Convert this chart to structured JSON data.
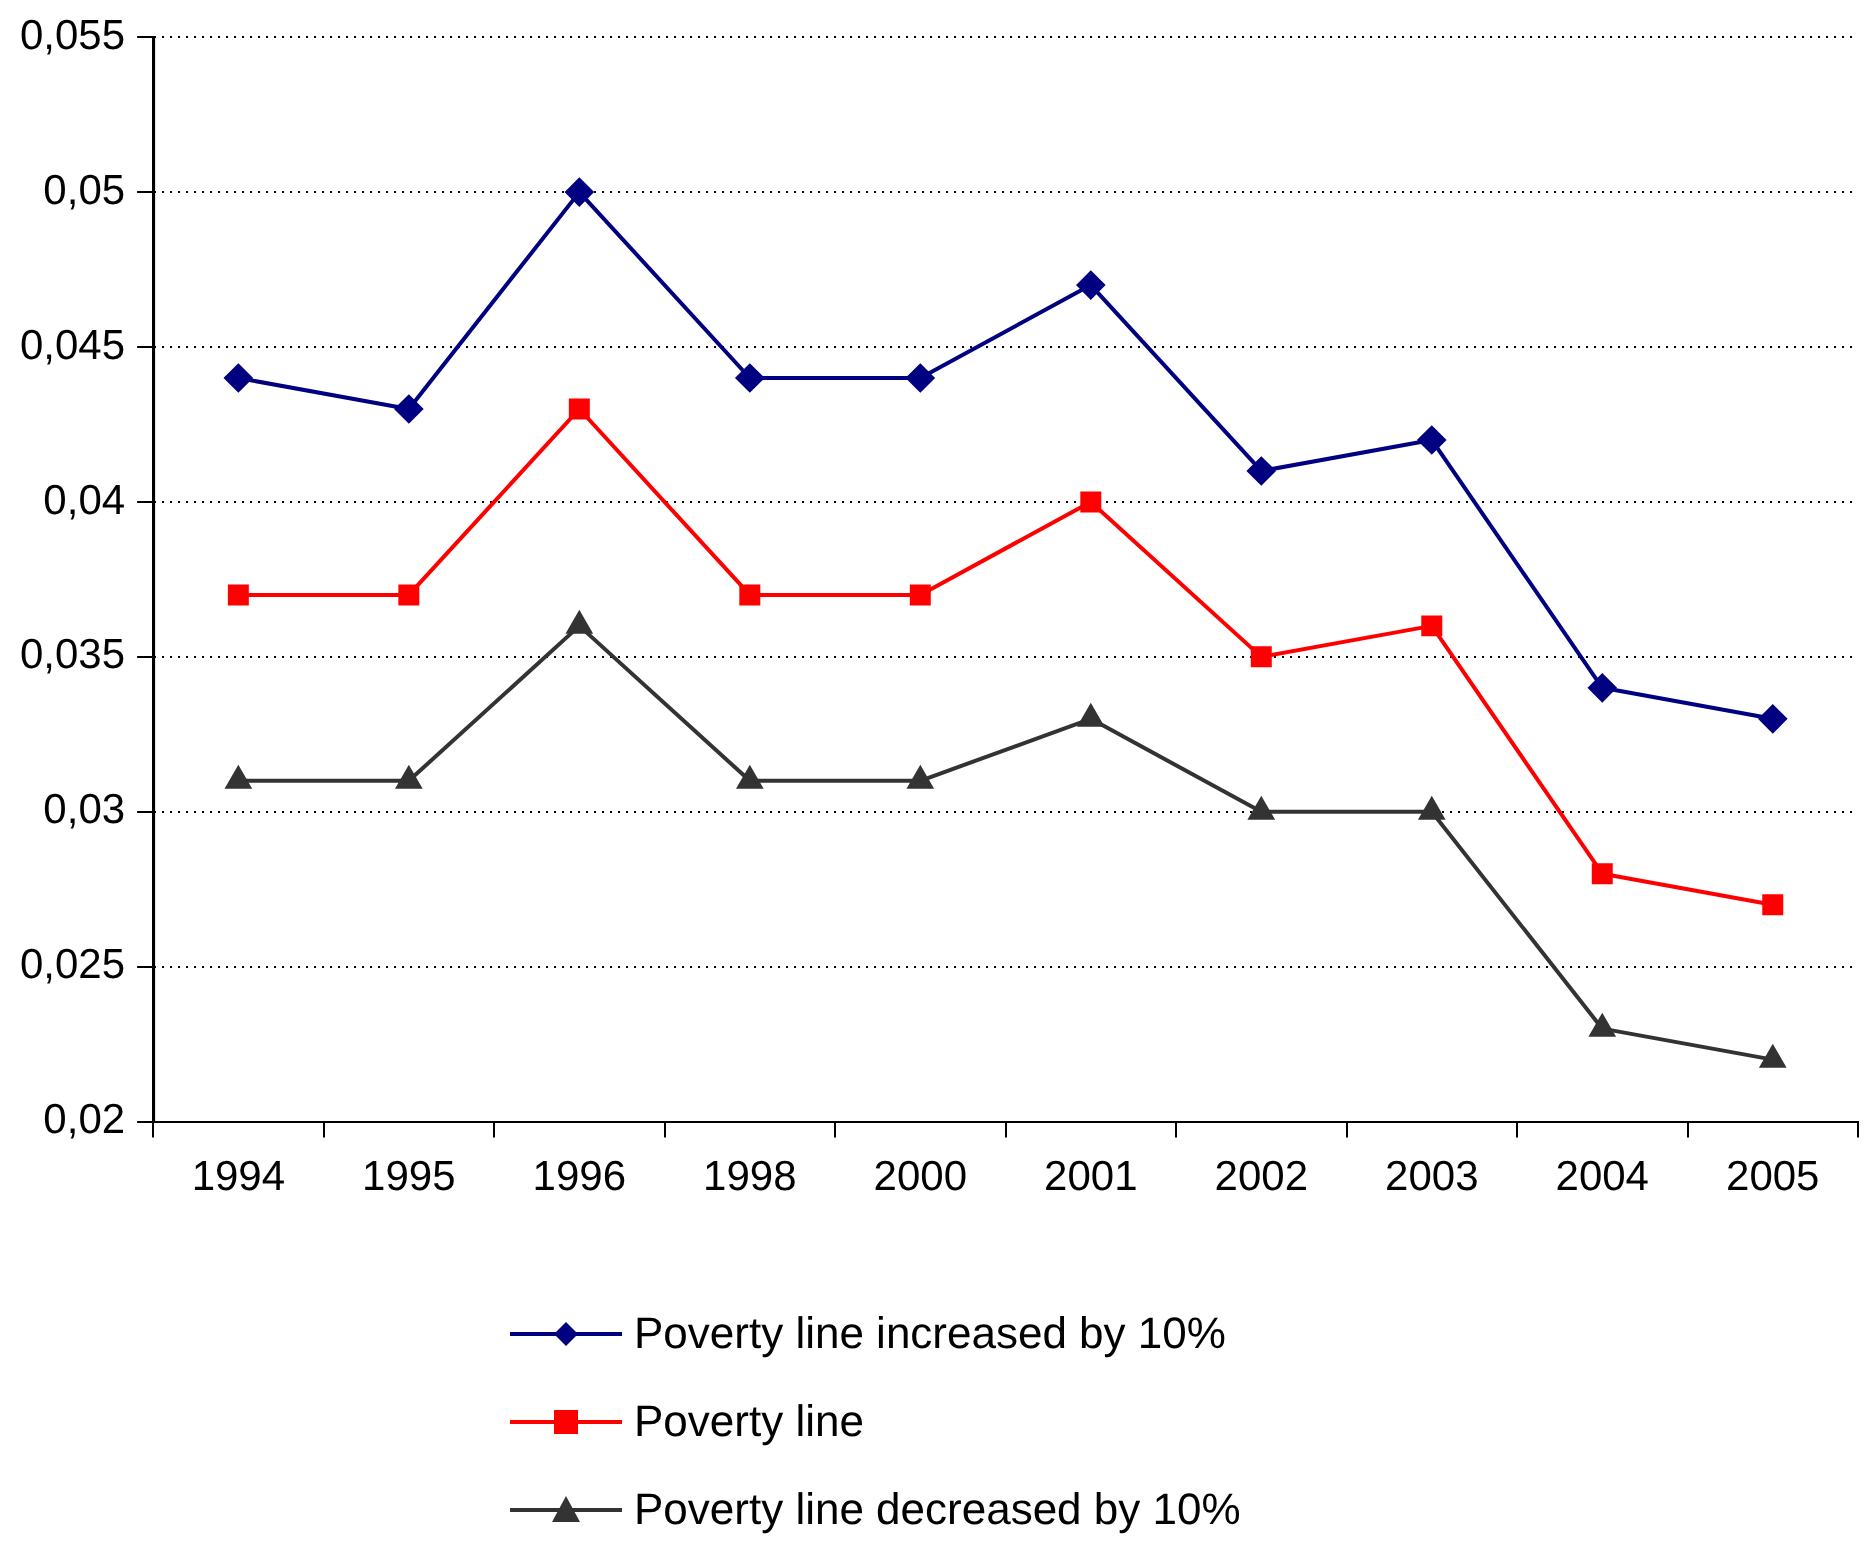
{
  "chart_data": {
    "type": "line",
    "categories": [
      "1994",
      "1995",
      "1996",
      "1998",
      "2000",
      "2001",
      "2002",
      "2003",
      "2004",
      "2005"
    ],
    "series": [
      {
        "name": "Poverty line increased by 10%",
        "color": "#000080",
        "marker": "diamond",
        "values": [
          0.044,
          0.043,
          0.05,
          0.044,
          0.044,
          0.047,
          0.041,
          0.042,
          0.034,
          0.033
        ]
      },
      {
        "name": "Poverty line",
        "color": "#ff0000",
        "marker": "square",
        "values": [
          0.037,
          0.037,
          0.043,
          0.037,
          0.037,
          0.04,
          0.035,
          0.036,
          0.028,
          0.027
        ]
      },
      {
        "name": "Poverty line decreased by 10%",
        "color": "#333333",
        "marker": "triangle",
        "values": [
          0.031,
          0.031,
          0.036,
          0.031,
          0.031,
          0.033,
          0.03,
          0.03,
          0.023,
          0.022
        ]
      }
    ],
    "ylim": [
      0.02,
      0.055
    ],
    "yticks": [
      {
        "value": 0.02,
        "label": "0,02"
      },
      {
        "value": 0.025,
        "label": "0,025"
      },
      {
        "value": 0.03,
        "label": "0,03"
      },
      {
        "value": 0.035,
        "label": "0,035"
      },
      {
        "value": 0.04,
        "label": "0,04"
      },
      {
        "value": 0.045,
        "label": "0,045"
      },
      {
        "value": 0.05,
        "label": "0,05"
      },
      {
        "value": 0.055,
        "label": "0,055"
      }
    ],
    "grid": "y",
    "legend": "bottom",
    "line_style": "solid"
  }
}
